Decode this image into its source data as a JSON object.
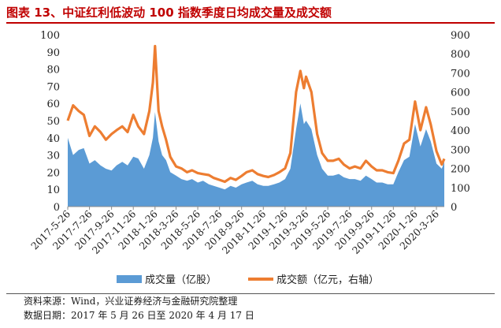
{
  "title": "图表 13、中证红利低波动 100 指数季度日均成交量及成交额",
  "chart_data": {
    "type": "area+line",
    "x_tick_labels": [
      "2017-5-26",
      "2017-7-26",
      "2017-9-26",
      "2017-11-26",
      "2018-1-26",
      "2018-3-26",
      "2018-5-26",
      "2018-7-26",
      "2018-9-26",
      "2018-11-26",
      "2019-1-26",
      "2019-3-26",
      "2019-5-26",
      "2019-7-26",
      "2019-9-26",
      "2019-11-26",
      "2020-1-26",
      "2020-3-26"
    ],
    "x_range": [
      "2017-05-26",
      "2020-04-17"
    ],
    "left_axis": {
      "ylim": [
        0,
        100
      ],
      "ticks": [
        0,
        10,
        20,
        30,
        40,
        50,
        60,
        70,
        80,
        90,
        100
      ]
    },
    "right_axis": {
      "ylim": [
        0,
        900
      ],
      "ticks": [
        0,
        100,
        200,
        300,
        400,
        500,
        600,
        700,
        800,
        900
      ]
    },
    "series": [
      {
        "name": "成交量（亿股）",
        "axis": "left",
        "type": "area",
        "color": "#5b9bd5",
        "points": [
          [
            "2017-05-26",
            40
          ],
          [
            "2017-06-10",
            30
          ],
          [
            "2017-06-26",
            33
          ],
          [
            "2017-07-10",
            34
          ],
          [
            "2017-07-26",
            25
          ],
          [
            "2017-08-10",
            27
          ],
          [
            "2017-08-26",
            24
          ],
          [
            "2017-09-10",
            22
          ],
          [
            "2017-09-26",
            21
          ],
          [
            "2017-10-10",
            24
          ],
          [
            "2017-10-26",
            26
          ],
          [
            "2017-11-10",
            24
          ],
          [
            "2017-11-26",
            29
          ],
          [
            "2017-12-10",
            28
          ],
          [
            "2017-12-26",
            22
          ],
          [
            "2018-01-10",
            30
          ],
          [
            "2018-01-20",
            40
          ],
          [
            "2018-01-26",
            55
          ],
          [
            "2018-02-05",
            38
          ],
          [
            "2018-02-15",
            30
          ],
          [
            "2018-02-26",
            27
          ],
          [
            "2018-03-10",
            20
          ],
          [
            "2018-03-26",
            18
          ],
          [
            "2018-04-10",
            16
          ],
          [
            "2018-04-26",
            15
          ],
          [
            "2018-05-10",
            16
          ],
          [
            "2018-05-26",
            14
          ],
          [
            "2018-06-10",
            15
          ],
          [
            "2018-06-26",
            13
          ],
          [
            "2018-07-10",
            12
          ],
          [
            "2018-07-26",
            11
          ],
          [
            "2018-08-10",
            10
          ],
          [
            "2018-08-26",
            12
          ],
          [
            "2018-09-10",
            11
          ],
          [
            "2018-09-26",
            13
          ],
          [
            "2018-10-10",
            14
          ],
          [
            "2018-10-26",
            15
          ],
          [
            "2018-11-10",
            13
          ],
          [
            "2018-11-26",
            12
          ],
          [
            "2018-12-10",
            12
          ],
          [
            "2018-12-26",
            13
          ],
          [
            "2019-01-10",
            14
          ],
          [
            "2019-01-26",
            16
          ],
          [
            "2019-02-10",
            22
          ],
          [
            "2019-02-26",
            45
          ],
          [
            "2019-03-10",
            60
          ],
          [
            "2019-03-20",
            48
          ],
          [
            "2019-03-26",
            50
          ],
          [
            "2019-04-10",
            45
          ],
          [
            "2019-04-26",
            30
          ],
          [
            "2019-05-10",
            22
          ],
          [
            "2019-05-26",
            18
          ],
          [
            "2019-06-10",
            18
          ],
          [
            "2019-06-26",
            19
          ],
          [
            "2019-07-10",
            17
          ],
          [
            "2019-07-26",
            16
          ],
          [
            "2019-08-10",
            16
          ],
          [
            "2019-08-26",
            15
          ],
          [
            "2019-09-10",
            18
          ],
          [
            "2019-09-26",
            16
          ],
          [
            "2019-10-10",
            14
          ],
          [
            "2019-10-26",
            14
          ],
          [
            "2019-11-10",
            13
          ],
          [
            "2019-11-26",
            13
          ],
          [
            "2019-12-10",
            20
          ],
          [
            "2019-12-26",
            27
          ],
          [
            "2020-01-10",
            29
          ],
          [
            "2020-01-26",
            48
          ],
          [
            "2020-02-10",
            35
          ],
          [
            "2020-02-26",
            45
          ],
          [
            "2020-03-10",
            38
          ],
          [
            "2020-03-26",
            25
          ],
          [
            "2020-04-10",
            22
          ],
          [
            "2020-04-17",
            26
          ]
        ]
      },
      {
        "name": "成交额（亿元，右轴）",
        "axis": "right",
        "type": "line",
        "color": "#ed7d31",
        "points": [
          [
            "2017-05-26",
            450
          ],
          [
            "2017-06-10",
            530
          ],
          [
            "2017-06-26",
            500
          ],
          [
            "2017-07-10",
            480
          ],
          [
            "2017-07-26",
            370
          ],
          [
            "2017-08-10",
            420
          ],
          [
            "2017-08-26",
            390
          ],
          [
            "2017-09-10",
            350
          ],
          [
            "2017-09-26",
            380
          ],
          [
            "2017-10-10",
            400
          ],
          [
            "2017-10-26",
            420
          ],
          [
            "2017-11-10",
            390
          ],
          [
            "2017-11-26",
            480
          ],
          [
            "2017-12-10",
            420
          ],
          [
            "2017-12-26",
            380
          ],
          [
            "2018-01-10",
            500
          ],
          [
            "2018-01-20",
            650
          ],
          [
            "2018-01-26",
            840
          ],
          [
            "2018-02-05",
            500
          ],
          [
            "2018-02-15",
            420
          ],
          [
            "2018-02-26",
            350
          ],
          [
            "2018-03-10",
            260
          ],
          [
            "2018-03-26",
            210
          ],
          [
            "2018-04-10",
            200
          ],
          [
            "2018-04-26",
            180
          ],
          [
            "2018-05-10",
            190
          ],
          [
            "2018-05-26",
            175
          ],
          [
            "2018-06-10",
            170
          ],
          [
            "2018-06-26",
            165
          ],
          [
            "2018-07-10",
            150
          ],
          [
            "2018-07-26",
            140
          ],
          [
            "2018-08-10",
            130
          ],
          [
            "2018-08-26",
            150
          ],
          [
            "2018-09-10",
            140
          ],
          [
            "2018-09-26",
            160
          ],
          [
            "2018-10-10",
            180
          ],
          [
            "2018-10-26",
            190
          ],
          [
            "2018-11-10",
            170
          ],
          [
            "2018-11-26",
            160
          ],
          [
            "2018-12-10",
            155
          ],
          [
            "2018-12-26",
            165
          ],
          [
            "2019-01-10",
            180
          ],
          [
            "2019-01-26",
            200
          ],
          [
            "2019-02-10",
            280
          ],
          [
            "2019-02-26",
            600
          ],
          [
            "2019-03-10",
            710
          ],
          [
            "2019-03-20",
            620
          ],
          [
            "2019-03-26",
            680
          ],
          [
            "2019-04-10",
            600
          ],
          [
            "2019-04-26",
            380
          ],
          [
            "2019-05-10",
            280
          ],
          [
            "2019-05-26",
            240
          ],
          [
            "2019-06-10",
            240
          ],
          [
            "2019-06-26",
            250
          ],
          [
            "2019-07-10",
            220
          ],
          [
            "2019-07-26",
            200
          ],
          [
            "2019-08-10",
            210
          ],
          [
            "2019-08-26",
            200
          ],
          [
            "2019-09-10",
            240
          ],
          [
            "2019-09-26",
            210
          ],
          [
            "2019-10-10",
            190
          ],
          [
            "2019-10-26",
            190
          ],
          [
            "2019-11-10",
            180
          ],
          [
            "2019-11-26",
            175
          ],
          [
            "2019-12-10",
            240
          ],
          [
            "2019-12-26",
            330
          ],
          [
            "2020-01-10",
            350
          ],
          [
            "2020-01-26",
            550
          ],
          [
            "2020-02-10",
            400
          ],
          [
            "2020-02-26",
            520
          ],
          [
            "2020-03-10",
            430
          ],
          [
            "2020-03-26",
            290
          ],
          [
            "2020-04-10",
            220
          ],
          [
            "2020-04-17",
            250
          ]
        ]
      }
    ],
    "legend_position": "bottom",
    "grid": false
  },
  "footer": {
    "source": "资料来源：Wind，兴业证券经济与金融研究院整理",
    "date_range": "数据日期：2017 年 5 月 26 日至 2020 年 4 月 17 日"
  }
}
